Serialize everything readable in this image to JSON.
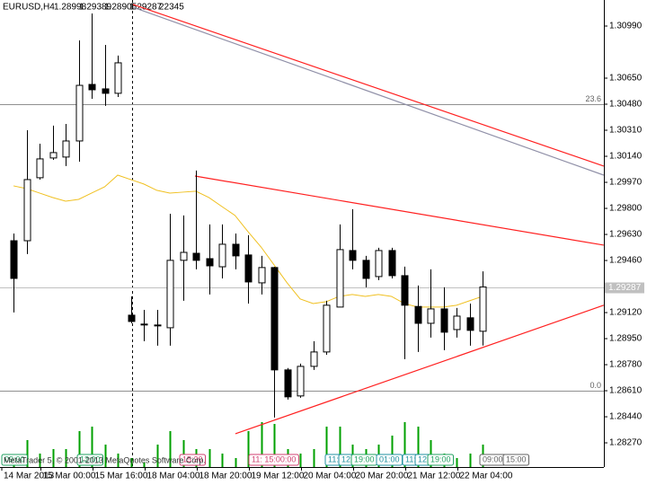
{
  "chart_data": {
    "type": "candlestick",
    "symbol": "EURUSD,H4",
    "tick_volume": 22345,
    "categories": [
      "14 Mar 2013",
      null,
      null,
      "15 Mar 00:00",
      null,
      null,
      null,
      "15 Mar 16:00",
      null,
      null,
      null,
      "18 Mar 04:00",
      null,
      null,
      null,
      "18 Mar 20:00",
      null,
      null,
      null,
      "19 Mar 12:00",
      null,
      null,
      null,
      "20 Mar 04:00",
      null,
      null,
      null,
      "20 Mar 20:00",
      null,
      null,
      null,
      "21 Mar 12:00",
      null,
      null,
      null,
      "22 Mar 04:00",
      null
    ],
    "open": [
      1.29589,
      1.29589,
      1.3,
      1.30129,
      1.30135,
      1.3024,
      1.30609,
      1.3058,
      1.30551,
      1.29103,
      1.29039,
      1.29039,
      1.29021,
      1.29461,
      1.29507,
      1.29472,
      1.29419,
      1.29566,
      1.29496,
      1.29314,
      1.29414,
      1.28746,
      1.28576,
      1.28769,
      1.28863,
      1.29156,
      1.29525,
      1.29461,
      1.29355,
      1.29525,
      1.29361,
      1.2916,
      1.2905,
      1.29144,
      1.29009,
      1.29086,
      1.28998
    ],
    "high": [
      1.29636,
      1.3031,
      1.30222,
      1.3034,
      1.30351,
      1.30896,
      1.31072,
      1.30867,
      1.30797,
      1.29226,
      1.29138,
      1.29138,
      1.29765,
      1.29754,
      1.30047,
      1.29695,
      1.29695,
      1.29636,
      1.29625,
      1.2949,
      1.29419,
      1.28758,
      1.28787,
      1.28933,
      1.29197,
      1.29695,
      1.29795,
      1.2949,
      1.29543,
      1.29543,
      1.2942,
      1.29297,
      1.29402,
      1.29285,
      1.2915,
      1.29179,
      1.29389
    ],
    "low": [
      1.29121,
      1.29502,
      1.29988,
      1.30117,
      1.30076,
      1.30105,
      1.30515,
      1.30469,
      1.30527,
      1.2905,
      1.28933,
      1.28904,
      1.28904,
      1.29197,
      1.29402,
      1.29238,
      1.29343,
      1.29402,
      1.29179,
      1.29238,
      1.28435,
      1.28552,
      1.28564,
      1.28746,
      1.28845,
      1.29156,
      1.29402,
      1.29285,
      1.29332,
      1.29343,
      1.28816,
      1.28863,
      1.28957,
      1.28875,
      1.28957,
      1.28904,
      1.28905
    ],
    "close": [
      1.29343,
      1.29988,
      1.30123,
      1.30164,
      1.3024,
      1.30603,
      1.30574,
      1.30551,
      1.3075,
      1.29062,
      1.29045,
      1.29033,
      1.29461,
      1.29513,
      1.29461,
      1.29425,
      1.29566,
      1.2949,
      1.2932,
      1.29414,
      1.28746,
      1.2857,
      1.28769,
      1.28863,
      1.29168,
      1.29531,
      1.29461,
      1.29343,
      1.29525,
      1.29361,
      1.29168,
      1.2905,
      1.29144,
      1.28992,
      1.29097,
      1.29004,
      1.29287
    ],
    "moving_average": {
      "color": "#f0c020",
      "values": [
        1.29947,
        1.29929,
        1.299,
        1.29871,
        1.29847,
        1.29859,
        1.299,
        1.29941,
        1.30017,
        1.29988,
        1.29959,
        1.29918,
        1.299,
        1.29906,
        1.29912,
        1.29871,
        1.29812,
        1.29754,
        1.29648,
        1.29548,
        1.29431,
        1.29314,
        1.29209,
        1.29179,
        1.29191,
        1.29226,
        1.29238,
        1.29226,
        1.29238,
        1.29226,
        1.29179,
        1.29156,
        1.29156,
        1.29156,
        1.29168,
        1.29197,
        1.29226
      ]
    },
    "volume": {
      "color": "#00a000",
      "values": [
        12,
        30,
        15,
        20,
        20,
        40,
        45,
        25,
        15,
        10,
        5,
        25,
        40,
        30,
        20,
        20,
        15,
        10,
        40,
        50,
        48,
        20,
        15,
        20,
        45,
        45,
        25,
        20,
        25,
        35,
        50,
        45,
        30,
        15,
        10,
        15,
        25
      ],
      "vlim": [
        0,
        60
      ]
    },
    "up_color": "#ffffff",
    "down_color": "#000000",
    "trendlines": [
      {
        "color": "#ff2020",
        "points": [
          [
            9.17,
            1.31131
          ],
          [
            45.3,
            1.30076
          ]
        ]
      },
      {
        "color": "#9090a8",
        "points": [
          [
            9.17,
            1.31113
          ],
          [
            45.3,
            1.30017
          ]
        ]
      },
      {
        "color": "#ff2020",
        "points": [
          [
            13.93,
            1.30011
          ],
          [
            45.3,
            1.2956
          ]
        ]
      },
      {
        "color": "#ff2020",
        "points": [
          [
            17.03,
            1.28329
          ],
          [
            45.3,
            1.29168
          ]
        ]
      }
    ],
    "fibo_levels": [
      {
        "value": 1.3048,
        "label": "23.6"
      },
      {
        "value": 1.2861,
        "label": "0.0"
      }
    ],
    "copyright": "MetaTrader 5, © 2001-2013 MetaQuotes Software Corp.",
    "time_markers": [
      {
        "text": "09:00",
        "color": "#20a060"
      },
      {
        "text": "12:00",
        "color": "#20a060"
      },
      {
        "text": "15:30",
        "color": "#d04070"
      },
      {
        "text": "11: 15:00:00",
        "color": "#d04070"
      },
      {
        "text": "11:",
        "color": "#2090a0"
      },
      {
        "text": "12:",
        "color": "#2090a0"
      },
      {
        "text": "19:00",
        "color": "#20a060"
      },
      {
        "text": "01:00",
        "color": "#2090a0"
      },
      {
        "text": "11:",
        "color": "#2090a0"
      },
      {
        "text": "12:",
        "color": "#2090a0"
      },
      {
        "text": "19:00",
        "color": "#20a060"
      },
      {
        "text": "09:00",
        "color": "#606060"
      },
      {
        "text": "15:00",
        "color": "#606060"
      }
    ],
    "ylim": [
      1.28112,
      1.3116
    ],
    "yticks": [
      {
        "value": 1.3099,
        "label": "1.30990"
      },
      {
        "value": 1.3065,
        "label": "1.30650"
      },
      {
        "value": 1.3048,
        "label": "1.30480"
      },
      {
        "value": 1.3031,
        "label": "1.30310"
      },
      {
        "value": 1.3014,
        "label": "1.30140"
      },
      {
        "value": 1.2997,
        "label": "1.29970"
      },
      {
        "value": 1.298,
        "label": "1.29800"
      },
      {
        "value": 1.2963,
        "label": "1.29630"
      },
      {
        "value": 1.2946,
        "label": "1.29460"
      },
      {
        "value": 1.2912,
        "label": "1.29120"
      },
      {
        "value": 1.2895,
        "label": "1.28950"
      },
      {
        "value": 1.2878,
        "label": "1.28780"
      },
      {
        "value": 1.2861,
        "label": "1.28610"
      },
      {
        "value": 1.2844,
        "label": "1.28440"
      },
      {
        "value": 1.2827,
        "label": "1.28270"
      }
    ]
  }
}
